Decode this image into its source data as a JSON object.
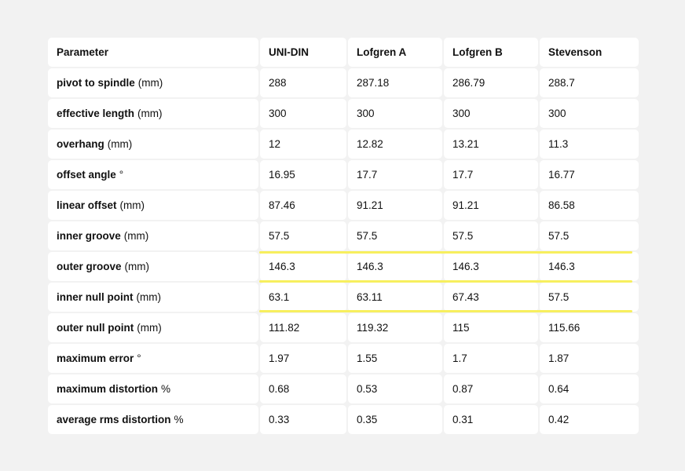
{
  "table": {
    "headers": [
      "Parameter",
      "UNI-DIN",
      "Lofgren A",
      "Lofgren B",
      "Stevenson"
    ],
    "rows": [
      {
        "name": "pivot to spindle",
        "unit": "(mm)",
        "values": [
          "288",
          "287.18",
          "286.79",
          "288.7"
        ]
      },
      {
        "name": "effective length",
        "unit": "(mm)",
        "values": [
          "300",
          "300",
          "300",
          "300"
        ]
      },
      {
        "name": "overhang",
        "unit": "(mm)",
        "values": [
          "12",
          "12.82",
          "13.21",
          "11.3"
        ]
      },
      {
        "name": "offset angle",
        "unit": "°",
        "values": [
          "16.95",
          "17.7",
          "17.7",
          "16.77"
        ]
      },
      {
        "name": "linear offset",
        "unit": "(mm)",
        "values": [
          "87.46",
          "91.21",
          "91.21",
          "86.58"
        ]
      },
      {
        "name": "inner groove",
        "unit": "(mm)",
        "values": [
          "57.5",
          "57.5",
          "57.5",
          "57.5"
        ]
      },
      {
        "name": "outer groove",
        "unit": "(mm)",
        "values": [
          "146.3",
          "146.3",
          "146.3",
          "146.3"
        ]
      },
      {
        "name": "inner null point",
        "unit": "(mm)",
        "values": [
          "63.1",
          "63.11",
          "67.43",
          "57.5"
        ]
      },
      {
        "name": "outer null point",
        "unit": "(mm)",
        "values": [
          "111.82",
          "119.32",
          "115",
          "115.66"
        ]
      },
      {
        "name": "maximum error",
        "unit": "°",
        "values": [
          "1.97",
          "1.55",
          "1.7",
          "1.87"
        ]
      },
      {
        "name": "maximum distortion",
        "unit": "%",
        "values": [
          "0.68",
          "0.53",
          "0.87",
          "0.64"
        ]
      },
      {
        "name": "average rms distortion",
        "unit": "%",
        "values": [
          "0.33",
          "0.35",
          "0.31",
          "0.42"
        ]
      }
    ]
  },
  "highlight": {
    "color": "#f7ef5e",
    "rows": [
      "outer groove",
      "inner null point"
    ]
  }
}
